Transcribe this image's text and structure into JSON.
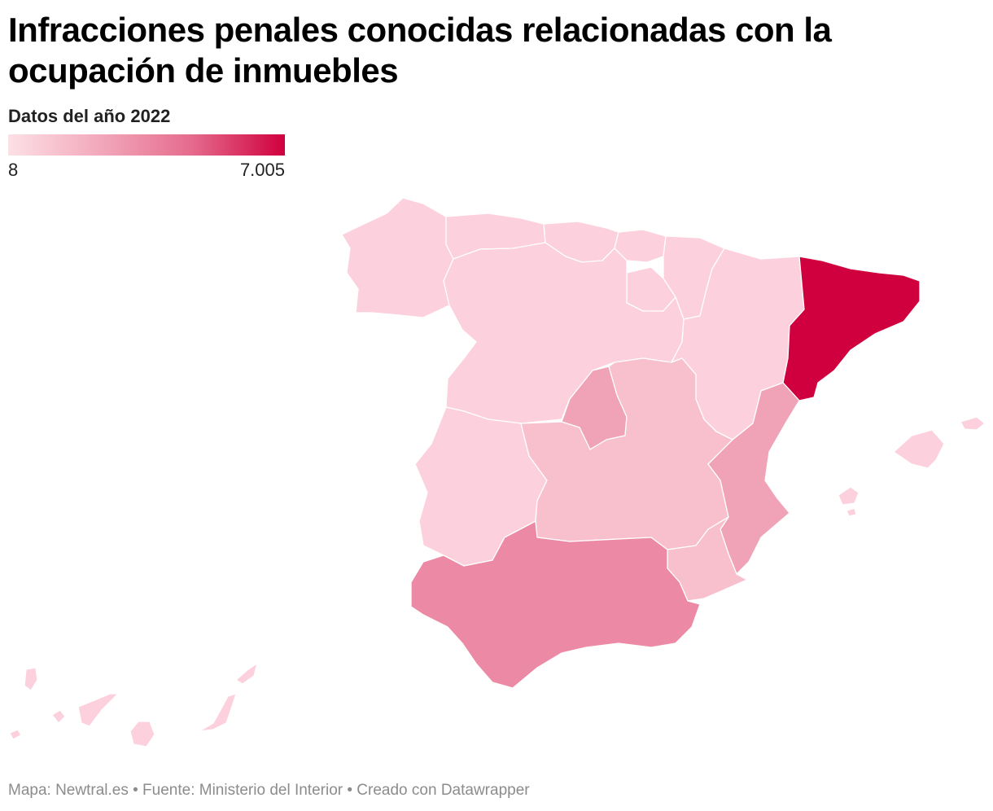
{
  "title": "Infracciones penales conocidas relacionadas con la ocupación de inmuebles",
  "subtitle": "Datos del año 2022",
  "legend": {
    "min_label": "8",
    "max_label": "7.005",
    "min_value": 8,
    "max_value": 7005,
    "color_min": "#fde0e6",
    "color_max": "#d0003e"
  },
  "footer": "Mapa: Newtral.es • Fuente: Ministerio del Interior • Creado con Datawrapper",
  "colors": {
    "very_light": "#fcd0dc",
    "light": "#f8c0cd",
    "medium": "#f0a3b7",
    "medium_dark": "#ec8aa6",
    "darkest": "#d0003e"
  }
}
